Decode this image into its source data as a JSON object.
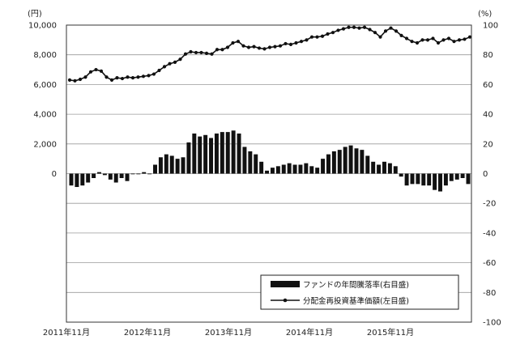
{
  "chart_data": {
    "type": "bar+line",
    "title": "",
    "left_unit": "(円)",
    "right_unit": "(%)",
    "left_ylim": [
      0,
      10000
    ],
    "right_ylim": [
      -100,
      100
    ],
    "left_ticks": [
      "10,000",
      "8,000",
      "6,000",
      "4,000",
      "2,000",
      "0"
    ],
    "right_ticks": [
      "100",
      "80",
      "60",
      "40",
      "20",
      "0",
      "-20",
      "-40",
      "-60",
      "-80",
      "-100"
    ],
    "x_labels": [
      "2011年11月",
      "2012年11月",
      "2013年11月",
      "2014年11月",
      "2015年11月"
    ],
    "legend": {
      "position": "bottom-right",
      "bar_label": "ファンドの年間騰落率(右目盛)",
      "line_label": "分配金再投資基準価額(左目盛)"
    },
    "grid": true,
    "colors": {
      "bar": "#111111",
      "line": "#111111",
      "grid": "#9a9a9a"
    },
    "series": [
      {
        "name": "ファンドの年間騰落率(右目盛)",
        "axis": "right",
        "type": "bar",
        "values": [
          -8,
          -9,
          -8,
          -6,
          -3,
          1,
          -1,
          -4,
          -6,
          -3,
          -5,
          0,
          0,
          1,
          0,
          6,
          11,
          13,
          12,
          10,
          11,
          21,
          27,
          25,
          26,
          24,
          27,
          28,
          28,
          29,
          27,
          18,
          15,
          13,
          8,
          2,
          4,
          5,
          6,
          7,
          6,
          6,
          7,
          5,
          4,
          10,
          13,
          15,
          16,
          18,
          19,
          17,
          16,
          12,
          8,
          6,
          8,
          7,
          5,
          -2,
          -8,
          -7,
          -7,
          -8,
          -8,
          -11,
          -12,
          -8,
          -5,
          -4,
          -3,
          -7
        ]
      },
      {
        "name": "分配金再投資基準価額(左目盛)",
        "axis": "left",
        "type": "line",
        "values": [
          6300,
          6250,
          6350,
          6500,
          6850,
          7000,
          6900,
          6500,
          6300,
          6450,
          6400,
          6500,
          6450,
          6500,
          6550,
          6600,
          6700,
          6950,
          7200,
          7400,
          7500,
          7700,
          8050,
          8200,
          8150,
          8150,
          8100,
          8050,
          8350,
          8350,
          8500,
          8800,
          8900,
          8600,
          8500,
          8550,
          8450,
          8400,
          8500,
          8550,
          8600,
          8750,
          8700,
          8800,
          8900,
          9000,
          9200,
          9200,
          9250,
          9400,
          9500,
          9650,
          9750,
          9850,
          9850,
          9800,
          9850,
          9700,
          9500,
          9200,
          9600,
          9800,
          9600,
          9300,
          9100,
          8900,
          8800,
          9000,
          9000,
          9100,
          8800,
          9000,
          9100,
          8900,
          9000,
          9050,
          9200
        ]
      }
    ]
  }
}
